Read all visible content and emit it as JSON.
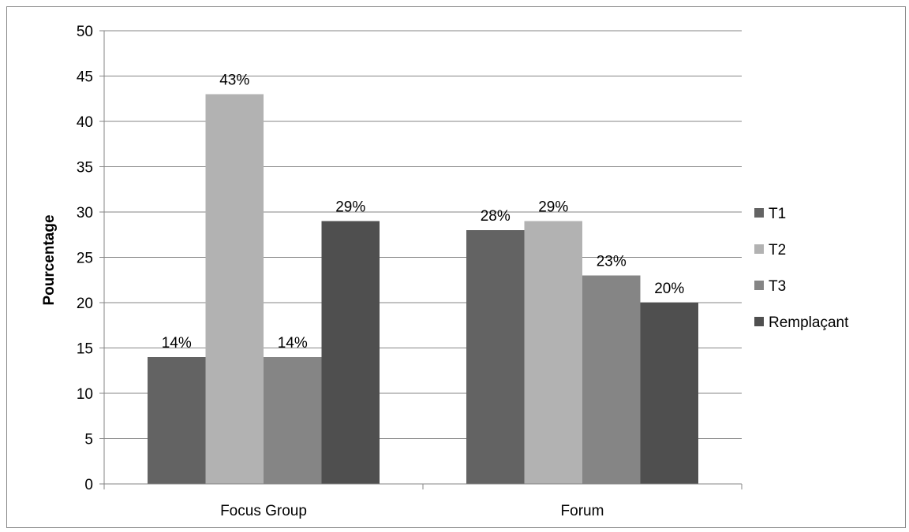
{
  "chart_data": {
    "type": "bar",
    "categories": [
      "Focus Group",
      "Forum"
    ],
    "series": [
      {
        "name": "T1",
        "values": [
          14,
          28
        ],
        "labels": [
          "14%",
          "28%"
        ],
        "color": "#636363"
      },
      {
        "name": "T2",
        "values": [
          43,
          29
        ],
        "labels": [
          "43%",
          "29%"
        ],
        "color": "#b2b2b2"
      },
      {
        "name": "T3",
        "values": [
          14,
          23
        ],
        "labels": [
          "14%",
          "23%"
        ],
        "color": "#858585"
      },
      {
        "name": "Remplaçant",
        "values": [
          29,
          20
        ],
        "labels": [
          "29%",
          "20%"
        ],
        "color": "#4f4f4f"
      }
    ],
    "title": "",
    "xlabel": "",
    "ylabel": "Pourcentage",
    "ylim": [
      0,
      50
    ],
    "yticks": [
      "0",
      "5",
      "10",
      "15",
      "20",
      "25",
      "30",
      "35",
      "40",
      "45",
      "50"
    ],
    "grid": true,
    "legend_position": "right"
  }
}
